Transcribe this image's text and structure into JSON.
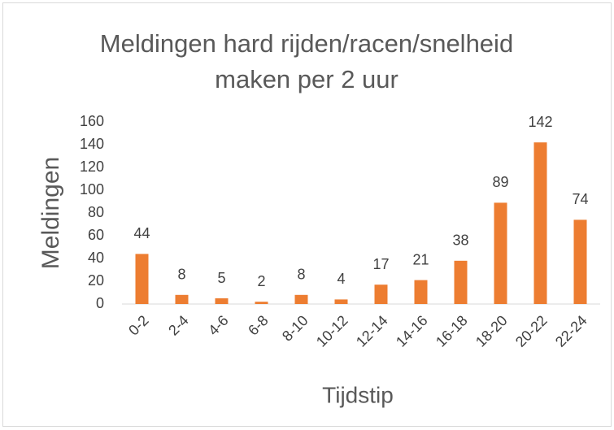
{
  "chart_data": {
    "type": "bar",
    "title": "Meldingen hard rijden/racen/snelheid maken per 2 uur",
    "x_label": "Tijdstip",
    "y_label": "Meldingen",
    "categories": [
      "0-2",
      "2-4",
      "4-6",
      "6-8",
      "8-10",
      "10-12",
      "12-14",
      "14-16",
      "16-18",
      "18-20",
      "20-22",
      "22-24"
    ],
    "values": [
      44,
      8,
      5,
      2,
      8,
      4,
      17,
      21,
      38,
      89,
      142,
      74
    ],
    "color": "#ed7d31",
    "ylim": [
      0,
      160
    ],
    "yticks": [
      0,
      20,
      40,
      60,
      80,
      100,
      120,
      140,
      160
    ],
    "grid": false
  }
}
